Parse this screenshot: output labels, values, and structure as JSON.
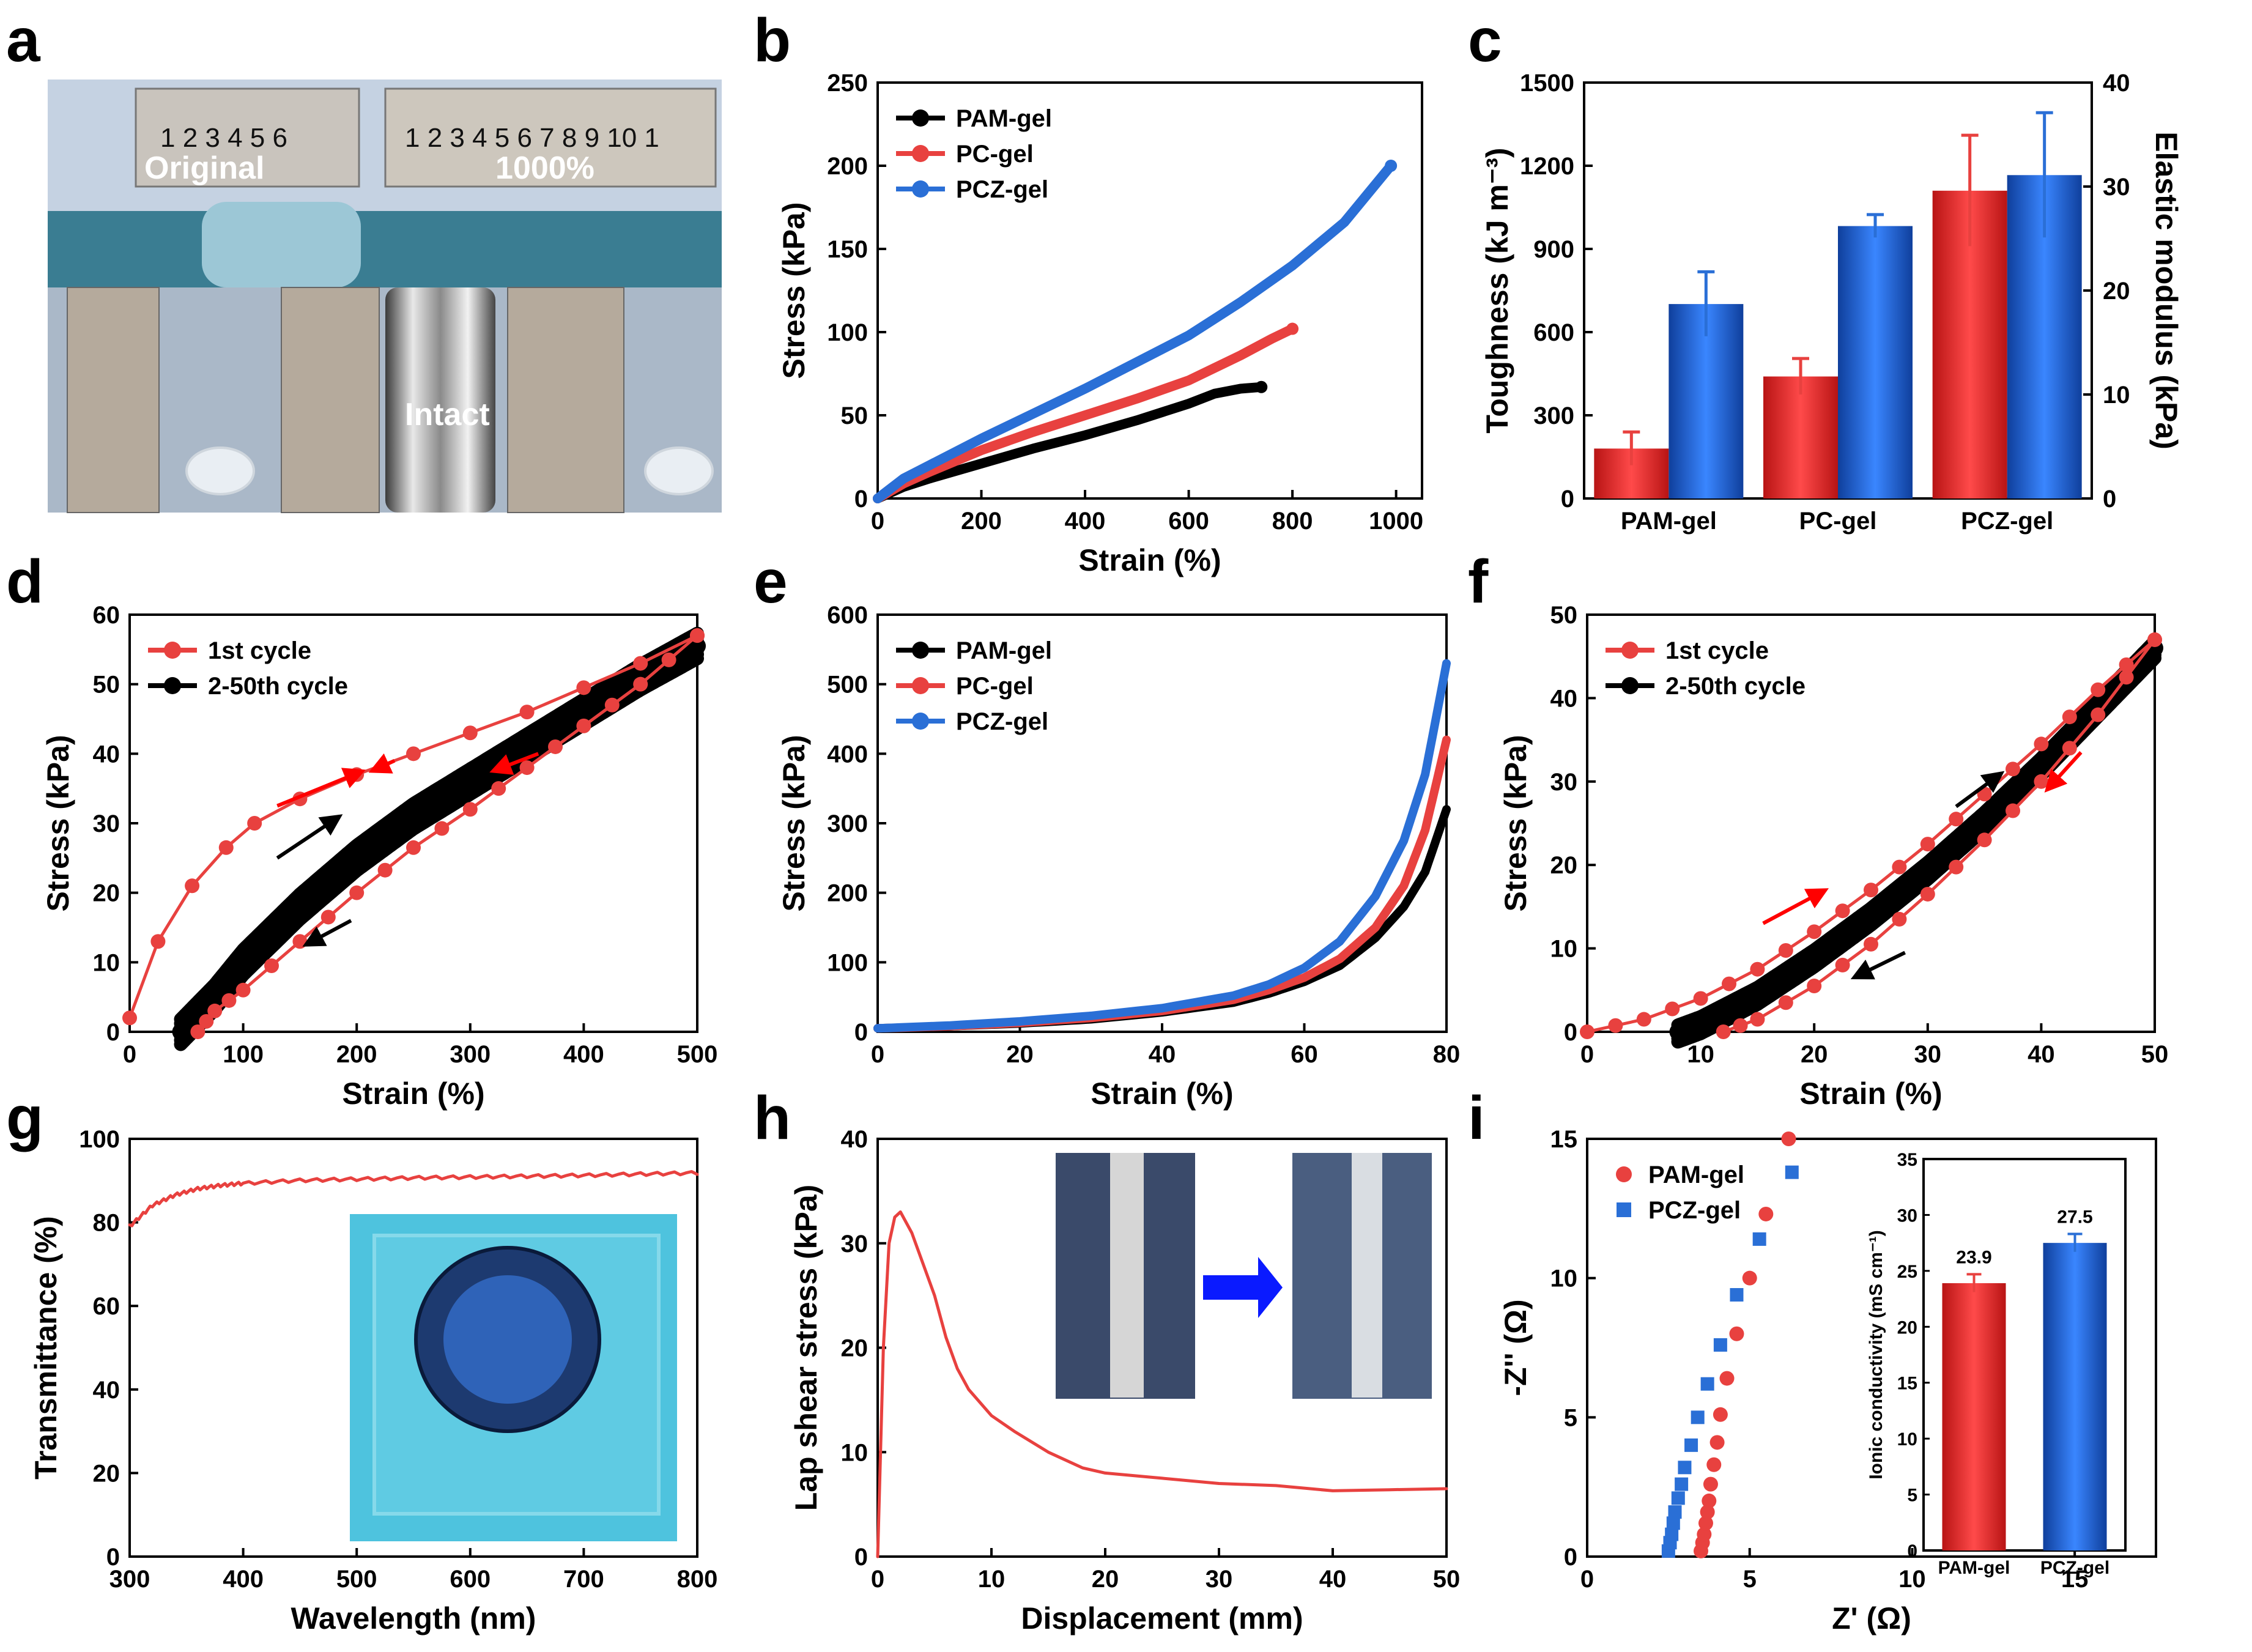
{
  "panel_letters": {
    "a": "a",
    "b": "b",
    "c": "c",
    "d": "d",
    "e": "e",
    "f": "f",
    "g": "g",
    "h": "h",
    "i": "i"
  },
  "colors": {
    "pam": "#000000",
    "pc": "#e8413f",
    "pcz": "#2a6fd6",
    "red_bar": "#e8413f",
    "blue_bar": "#2a6fd6",
    "arrow_red": "#ff0000",
    "arrow_black": "#000000"
  },
  "photo_a": {
    "labels": {
      "original": "Original",
      "stretched": "1000%",
      "intact": "Intact"
    },
    "ruler_top_left": "1 2 3 4 5 6",
    "ruler_top_right": "1 2 3 4 5 6 7 8 9 10 1"
  },
  "chart_data": [
    {
      "panel": "b",
      "type": "line",
      "xlabel": "Strain (%)",
      "ylabel": "Stress (kPa)",
      "xlim": [
        0,
        1050
      ],
      "ylim": [
        0,
        250
      ],
      "xticks": [
        0,
        200,
        400,
        600,
        800,
        1000
      ],
      "yticks": [
        0,
        50,
        100,
        150,
        200,
        250
      ],
      "legend": "top-left",
      "series": [
        {
          "name": "PAM-gel",
          "color": "#000000",
          "x": [
            0,
            50,
            100,
            200,
            300,
            400,
            500,
            600,
            650,
            700,
            740
          ],
          "y": [
            0,
            7,
            12,
            21,
            30,
            38,
            47,
            57,
            63,
            66,
            67
          ]
        },
        {
          "name": "PC-gel",
          "color": "#e8413f",
          "x": [
            0,
            50,
            100,
            200,
            300,
            400,
            500,
            600,
            700,
            760,
            800
          ],
          "y": [
            0,
            9,
            16,
            29,
            40,
            50,
            60,
            71,
            86,
            96,
            102
          ]
        },
        {
          "name": "PCZ-gel",
          "color": "#2a6fd6",
          "x": [
            0,
            50,
            100,
            200,
            300,
            400,
            500,
            600,
            700,
            800,
            900,
            990
          ],
          "y": [
            0,
            12,
            20,
            36,
            51,
            66,
            82,
            98,
            118,
            140,
            166,
            200
          ]
        }
      ]
    },
    {
      "panel": "c",
      "type": "bar",
      "categories": [
        "PAM-gel",
        "PC-gel",
        "PCZ-gel"
      ],
      "ylabel": "Toughness (kJ m⁻³)",
      "y2label": "Elastic modulus (kPa)",
      "ylim": [
        0,
        1500
      ],
      "y2lim": [
        0,
        40
      ],
      "yticks": [
        0,
        300,
        600,
        900,
        1200,
        1500
      ],
      "y2ticks": [
        0,
        10,
        20,
        30,
        40
      ],
      "series": [
        {
          "name": "Toughness",
          "axis": "left",
          "color": "#e8413f",
          "values": [
            180,
            440,
            1110
          ],
          "errors": [
            60,
            65,
            200
          ]
        },
        {
          "name": "Elastic modulus",
          "axis": "right",
          "color": "#2a6fd6",
          "values": [
            18.7,
            26.2,
            31.1
          ],
          "errors": [
            3.1,
            1.1,
            6.0
          ]
        }
      ]
    },
    {
      "panel": "d",
      "type": "line",
      "xlabel": "Strain (%)",
      "ylabel": "Stress (kPa)",
      "xlim": [
        0,
        500
      ],
      "ylim": [
        0,
        60
      ],
      "xticks": [
        0,
        100,
        200,
        300,
        400,
        500
      ],
      "yticks": [
        0,
        10,
        20,
        30,
        40,
        50,
        60
      ],
      "legend": "top-left",
      "series": [
        {
          "name": "1st cycle",
          "color": "#e8413f",
          "x": [
            0,
            25,
            55,
            85,
            110,
            150,
            200,
            250,
            300,
            350,
            400,
            450,
            500
          ],
          "y": [
            2,
            13,
            21,
            26.5,
            30,
            33.5,
            37,
            40,
            43,
            46,
            49.5,
            53,
            57
          ]
        },
        {
          "name": "2-50th cycle",
          "color": "#000000",
          "x": [
            45,
            75,
            100,
            150,
            200,
            250,
            300,
            350,
            400,
            450,
            500
          ],
          "y": [
            0,
            5,
            10,
            18,
            25,
            31,
            36,
            41,
            46,
            51,
            55.5
          ]
        }
      ],
      "unload": {
        "x": [
          500,
          450,
          400,
          350,
          300,
          250,
          200,
          150,
          100,
          75,
          60
        ],
        "y": [
          57,
          50,
          44,
          38,
          32,
          26.5,
          20,
          13,
          6,
          3,
          0
        ]
      }
    },
    {
      "panel": "e",
      "type": "line",
      "xlabel": "Strain (%)",
      "ylabel": "Stress (kPa)",
      "xlim": [
        0,
        80
      ],
      "ylim": [
        0,
        600
      ],
      "xticks": [
        0,
        20,
        40,
        60,
        80
      ],
      "yticks": [
        0,
        100,
        200,
        300,
        400,
        500,
        600
      ],
      "legend": "top-left",
      "series": [
        {
          "name": "PAM-gel",
          "color": "#000000",
          "x": [
            0,
            10,
            20,
            30,
            40,
            50,
            55,
            60,
            65,
            70,
            74,
            77,
            80
          ],
          "y": [
            5,
            8,
            12,
            18,
            28,
            42,
            55,
            72,
            95,
            135,
            180,
            230,
            320
          ]
        },
        {
          "name": "PC-gel",
          "color": "#e8413f",
          "x": [
            0,
            10,
            20,
            30,
            40,
            50,
            55,
            60,
            65,
            70,
            74,
            77,
            80
          ],
          "y": [
            5,
            8,
            13,
            20,
            30,
            46,
            60,
            78,
            105,
            150,
            210,
            290,
            420
          ]
        },
        {
          "name": "PCZ-gel",
          "color": "#2a6fd6",
          "x": [
            0,
            10,
            20,
            30,
            40,
            50,
            55,
            60,
            65,
            70,
            74,
            77,
            80
          ],
          "y": [
            5,
            9,
            15,
            23,
            34,
            52,
            68,
            92,
            130,
            195,
            275,
            370,
            530
          ]
        }
      ]
    },
    {
      "panel": "f",
      "type": "line",
      "xlabel": "Strain (%)",
      "ylabel": "Stress (kPa)",
      "xlim": [
        0,
        50
      ],
      "ylim": [
        0,
        50
      ],
      "xticks": [
        0,
        10,
        20,
        30,
        40,
        50
      ],
      "yticks": [
        0,
        10,
        20,
        30,
        40,
        50
      ],
      "legend": "top-left",
      "series": [
        {
          "name": "1st cycle",
          "color": "#e8413f",
          "x": [
            0,
            5,
            10,
            15,
            20,
            25,
            30,
            35,
            40,
            45,
            50
          ],
          "y": [
            0,
            1.5,
            4,
            7.5,
            12,
            17,
            22.5,
            28.5,
            34.5,
            41,
            47
          ]
        },
        {
          "name": "2-50th cycle",
          "color": "#000000",
          "x": [
            8,
            10,
            15,
            20,
            25,
            30,
            35,
            40,
            45,
            50
          ],
          "y": [
            0,
            1,
            4.5,
            9,
            14,
            19.5,
            25.5,
            32,
            39,
            46
          ]
        }
      ],
      "unload": {
        "x": [
          50,
          45,
          40,
          35,
          30,
          25,
          20,
          15,
          12
        ],
        "y": [
          47,
          38,
          30,
          23,
          16.5,
          10.5,
          5.5,
          1.5,
          0
        ]
      }
    },
    {
      "panel": "g",
      "type": "line",
      "xlabel": "Wavelength (nm)",
      "ylabel": "Transmittance (%)",
      "xlim": [
        300,
        800
      ],
      "ylim": [
        0,
        100
      ],
      "xticks": [
        300,
        400,
        500,
        600,
        700,
        800
      ],
      "yticks": [
        0,
        20,
        40,
        60,
        80,
        100
      ],
      "series": [
        {
          "name": "",
          "color": "#e8413f",
          "x": [
            300,
            320,
            340,
            360,
            380,
            400,
            450,
            500,
            550,
            600,
            650,
            700,
            750,
            800
          ],
          "y": [
            79,
            84,
            86.5,
            88,
            88.8,
            89.3,
            90,
            90.3,
            90.6,
            90.8,
            91,
            91.2,
            91.5,
            91.8
          ]
        }
      ]
    },
    {
      "panel": "h",
      "type": "line",
      "xlabel": "Displacement (mm)",
      "ylabel": "Lap shear stress (kPa)",
      "xlim": [
        0,
        50
      ],
      "ylim": [
        0,
        40
      ],
      "xticks": [
        0,
        10,
        20,
        30,
        40,
        50
      ],
      "yticks": [
        0,
        10,
        20,
        30,
        40
      ],
      "series": [
        {
          "name": "",
          "color": "#e8413f",
          "x": [
            0,
            0.5,
            1,
            1.5,
            2,
            3,
            4,
            5,
            6,
            7,
            8,
            10,
            12,
            15,
            18,
            20,
            25,
            30,
            35,
            40,
            45,
            50
          ],
          "y": [
            0,
            20,
            30,
            32.5,
            33,
            31,
            28,
            25,
            21,
            18,
            16,
            13.5,
            12,
            10,
            8.5,
            8,
            7.5,
            7,
            6.8,
            6.3,
            6.4,
            6.5
          ]
        }
      ]
    },
    {
      "panel": "i",
      "type": "scatter",
      "xlabel": "Z' (Ω)",
      "ylabel": "-Z'' (Ω)",
      "xlim": [
        0,
        17.5
      ],
      "ylim": [
        0,
        15
      ],
      "xticks": [
        0,
        5,
        10,
        15
      ],
      "yticks": [
        0,
        5,
        10,
        15
      ],
      "legend": "top-left",
      "series": [
        {
          "name": "PAM-gel",
          "color": "#e8413f",
          "marker": "circle",
          "x": [
            3.5,
            3.55,
            3.6,
            3.65,
            3.7,
            3.75,
            3.8,
            3.9,
            4.0,
            4.1,
            4.3,
            4.6,
            5.0,
            5.5,
            6.2
          ],
          "y": [
            0.2,
            0.5,
            0.8,
            1.2,
            1.6,
            2.0,
            2.6,
            3.3,
            4.1,
            5.1,
            6.4,
            8.0,
            10.0,
            12.3,
            15.0
          ]
        },
        {
          "name": "PCZ-gel",
          "color": "#2a6fd6",
          "marker": "square",
          "x": [
            2.5,
            2.55,
            2.6,
            2.65,
            2.7,
            2.8,
            2.9,
            3.0,
            3.2,
            3.4,
            3.7,
            4.1,
            4.6,
            5.3,
            6.3
          ],
          "y": [
            0.2,
            0.5,
            0.8,
            1.2,
            1.6,
            2.1,
            2.6,
            3.2,
            4.0,
            5.0,
            6.2,
            7.6,
            9.4,
            11.4,
            13.8
          ]
        }
      ],
      "inset": {
        "type": "bar",
        "ylabel": "Ionic conductivity (mS cm⁻¹)",
        "categories": [
          "PAM-gel",
          "PCZ-gel"
        ],
        "values": [
          23.9,
          27.5
        ],
        "errors": [
          0.8,
          0.8
        ],
        "value_labels": [
          "23.9",
          "27.5"
        ],
        "colors": [
          "#e8413f",
          "#2a6fd6"
        ],
        "ylim": [
          0,
          35
        ],
        "yticks": [
          0,
          5,
          10,
          15,
          20,
          25,
          30,
          35
        ]
      }
    }
  ]
}
